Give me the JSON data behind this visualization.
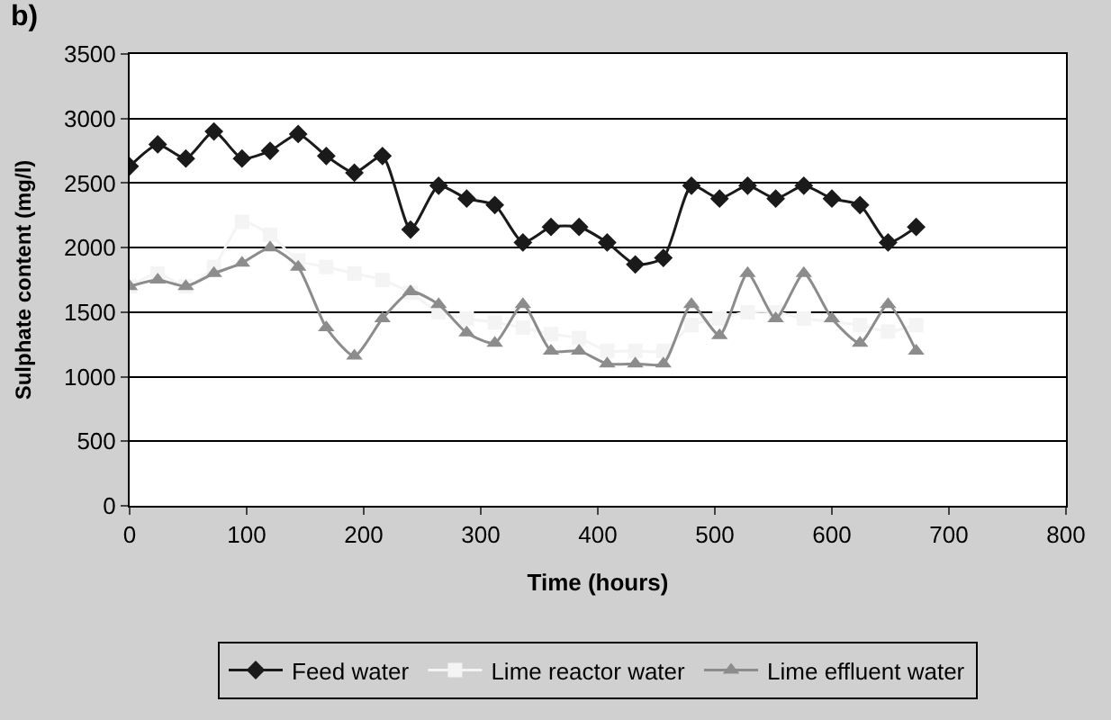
{
  "chart_data": {
    "type": "line",
    "title": "b)",
    "xlabel": "Time (hours)",
    "ylabel": "Sulphate content (mg/l)",
    "x": [
      0,
      24,
      48,
      72,
      96,
      120,
      144,
      168,
      192,
      216,
      240,
      264,
      288,
      312,
      336,
      360,
      384,
      408,
      432,
      456,
      480,
      504,
      528,
      552,
      576,
      600,
      624,
      648,
      672
    ],
    "series": [
      {
        "name": "Feed water",
        "color": "#1a1a1a",
        "marker": "diamond",
        "values": [
          2630,
          2800,
          2690,
          2900,
          2690,
          2750,
          2880,
          2710,
          2580,
          2710,
          2140,
          2480,
          2380,
          2330,
          2040,
          2160,
          2160,
          2040,
          1870,
          1920,
          2480,
          2380,
          2480,
          2380,
          2480,
          2380,
          2330,
          2040,
          2160
        ]
      },
      {
        "name": "Lime reactor water",
        "color": "#f4f4f4",
        "marker": "square",
        "values": [
          1700,
          1800,
          1700,
          1850,
          2200,
          2100,
          1900,
          1850,
          1800,
          1750,
          1650,
          1500,
          1450,
          1420,
          1380,
          1330,
          1300,
          1200,
          1200,
          1200,
          1400,
          1450,
          1500,
          1500,
          1450,
          null,
          1400,
          1350,
          1400
        ]
      },
      {
        "name": "Lime effluent water",
        "color": "#8c8c8c",
        "marker": "triangle",
        "values": [
          1700,
          1750,
          1700,
          1800,
          1880,
          2000,
          1850,
          1380,
          1160,
          1450,
          1660,
          1560,
          1340,
          1260,
          1560,
          1200,
          1200,
          1100,
          1100,
          1100,
          1560,
          1320,
          1800,
          1450,
          1800,
          1450,
          1260,
          1560,
          1200
        ]
      }
    ],
    "xlim": [
      0,
      800
    ],
    "xticks": [
      0,
      100,
      200,
      300,
      400,
      500,
      600,
      700,
      800
    ],
    "ylim": [
      0,
      3500
    ],
    "yticks": [
      0,
      500,
      1000,
      1500,
      2000,
      2500,
      3000,
      3500
    ],
    "grid": "y",
    "legend": "bottom"
  }
}
